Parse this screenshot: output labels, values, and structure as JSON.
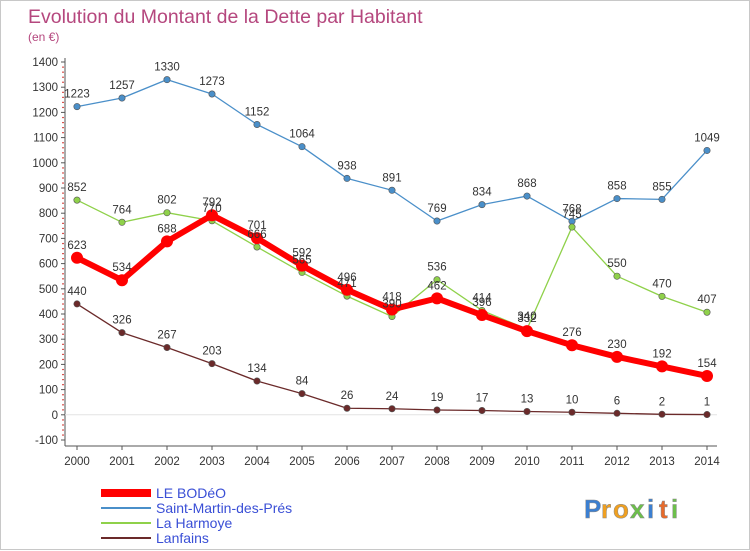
{
  "chart_data": {
    "type": "line",
    "title": "Evolution du Montant de la Dette par Habitant",
    "subtitle": "(en €)",
    "x": [
      2000,
      2001,
      2002,
      2003,
      2004,
      2005,
      2006,
      2007,
      2008,
      2009,
      2010,
      2011,
      2012,
      2013,
      2014
    ],
    "ylim": [
      -100,
      1400
    ],
    "yticks": [
      -100,
      0,
      100,
      200,
      300,
      400,
      500,
      600,
      700,
      800,
      900,
      1000,
      1100,
      1200,
      1300,
      1400
    ],
    "grid": false,
    "legend_position": "bottom-left",
    "series": [
      {
        "name": "Saint-Martin-des-Prés",
        "color": "#4a8fc9",
        "values": [
          1223,
          1257,
          1330,
          1273,
          1152,
          1064,
          938,
          891,
          769,
          834,
          868,
          768,
          858,
          855,
          1049
        ]
      },
      {
        "name": "La Harmoye",
        "color": "#8fd14a",
        "values": [
          852,
          764,
          802,
          770,
          666,
          565,
          471,
          390,
          536,
          414,
          340,
          745,
          550,
          470,
          407
        ]
      },
      {
        "name": "LE BODéO",
        "color": "#ff0000",
        "values": [
          623,
          534,
          688,
          792,
          701,
          592,
          496,
          418,
          462,
          396,
          332,
          276,
          230,
          192,
          154
        ]
      },
      {
        "name": "Lanfains",
        "color": "#6b2a2a",
        "values": [
          440,
          326,
          267,
          203,
          134,
          84,
          26,
          24,
          19,
          17,
          13,
          10,
          6,
          2,
          1
        ]
      }
    ],
    "legend": [
      "LE BODéO",
      "Saint-Martin-des-Prés",
      "La Harmoye",
      "Lanfains"
    ]
  },
  "logo": {
    "text": "Proxiti",
    "letters": [
      "P",
      "r",
      "o",
      "x",
      "i",
      "t",
      "i"
    ]
  }
}
